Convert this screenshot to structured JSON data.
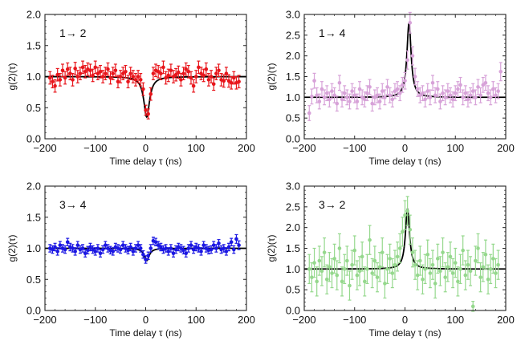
{
  "chart_data": [
    {
      "type": "scatter",
      "panel_label": "1→ 2",
      "xlabel": "Time delay τ (ns)",
      "ylabel": "g(2)(τ)",
      "xlim": [
        -200,
        200
      ],
      "ylim": [
        0.0,
        2.0
      ],
      "xticks": [
        -200,
        -100,
        0,
        100,
        200
      ],
      "yticks": [
        0.0,
        0.5,
        1.0,
        1.5,
        2.0
      ],
      "xtick_labels": [
        "−200",
        "−100",
        "0",
        "100",
        "200"
      ],
      "ytick_labels": [
        "0.0",
        "0.5",
        "1.0",
        "1.5",
        "2.0"
      ],
      "color": "#e8151b",
      "fit": {
        "shape": "dip",
        "baseline": 1.0,
        "center": 2,
        "width": 7,
        "amplitude": 0.65
      },
      "points": {
        "x": [
          -190,
          -185,
          -180,
          -175,
          -170,
          -165,
          -160,
          -155,
          -150,
          -145,
          -140,
          -135,
          -130,
          -125,
          -120,
          -115,
          -110,
          -105,
          -100,
          -95,
          -90,
          -85,
          -80,
          -75,
          -70,
          -65,
          -60,
          -55,
          -50,
          -45,
          -40,
          -35,
          -30,
          -25,
          -20,
          -15,
          -10,
          -5,
          0,
          5,
          10,
          15,
          20,
          25,
          30,
          35,
          40,
          45,
          50,
          55,
          60,
          65,
          70,
          75,
          80,
          85,
          90,
          95,
          100,
          105,
          110,
          115,
          120,
          125,
          130,
          135,
          140,
          145,
          150,
          155,
          160,
          165,
          170,
          175,
          180,
          185
        ],
        "y": [
          0.98,
          0.92,
          0.85,
          1.03,
          0.95,
          1.1,
          0.98,
          1.12,
          1.05,
          0.95,
          1.13,
          1.0,
          1.05,
          1.15,
          1.08,
          1.12,
          1.1,
          1.02,
          1.15,
          1.05,
          1.08,
          1.0,
          1.05,
          1.12,
          0.98,
          1.05,
          1.1,
          0.92,
          1.0,
          1.05,
          1.08,
          0.92,
          1.05,
          1.0,
          0.95,
          1.0,
          0.95,
          0.8,
          0.46,
          0.4,
          0.72,
          1.05,
          1.1,
          1.08,
          1.05,
          1.15,
          0.98,
          1.02,
          1.1,
          1.0,
          1.03,
          1.07,
          0.95,
          1.05,
          1.12,
          1.08,
          0.98,
          0.85,
          1.0,
          1.15,
          1.05,
          1.02,
          1.12,
          0.95,
          1.0,
          0.88,
          1.05,
          1.1,
          0.95,
          0.93,
          1.05,
          0.93,
          0.9,
          0.98,
          0.9,
          0.92
        ],
        "err": [
          0.1,
          0.1,
          0.1,
          0.1,
          0.1,
          0.1,
          0.1,
          0.1,
          0.1,
          0.1,
          0.1,
          0.1,
          0.1,
          0.1,
          0.1,
          0.1,
          0.1,
          0.1,
          0.1,
          0.1,
          0.1,
          0.1,
          0.1,
          0.1,
          0.1,
          0.1,
          0.1,
          0.1,
          0.1,
          0.1,
          0.1,
          0.1,
          0.1,
          0.1,
          0.1,
          0.1,
          0.1,
          0.1,
          0.08,
          0.08,
          0.1,
          0.1,
          0.1,
          0.1,
          0.1,
          0.1,
          0.1,
          0.1,
          0.1,
          0.1,
          0.1,
          0.1,
          0.1,
          0.1,
          0.1,
          0.1,
          0.1,
          0.1,
          0.1,
          0.1,
          0.1,
          0.1,
          0.1,
          0.1,
          0.1,
          0.1,
          0.1,
          0.1,
          0.1,
          0.1,
          0.1,
          0.1,
          0.1,
          0.1,
          0.1,
          0.1
        ]
      }
    },
    {
      "type": "scatter",
      "panel_label": "1→ 4",
      "xlabel": "Time delay τ (ns)",
      "ylabel": "g(2)(τ)",
      "xlim": [
        -200,
        200
      ],
      "ylim": [
        0.0,
        3.0
      ],
      "xticks": [
        -200,
        -100,
        0,
        100,
        200
      ],
      "yticks": [
        0.0,
        0.5,
        1.0,
        1.5,
        2.0,
        2.5,
        3.0
      ],
      "xtick_labels": [
        "−200",
        "−100",
        "0",
        "100",
        "200"
      ],
      "ytick_labels": [
        "0.0",
        "0.5",
        "1.0",
        "1.5",
        "2.0",
        "2.5",
        "3.0"
      ],
      "color": "#d7a2d8",
      "fit": {
        "shape": "peak",
        "baseline": 1.0,
        "center": 8,
        "width": 5,
        "amplitude": 1.8
      },
      "points": {
        "x": [
          -190,
          -185,
          -180,
          -175,
          -170,
          -165,
          -160,
          -155,
          -150,
          -145,
          -140,
          -135,
          -130,
          -125,
          -120,
          -115,
          -110,
          -105,
          -100,
          -95,
          -90,
          -85,
          -80,
          -75,
          -70,
          -65,
          -60,
          -55,
          -50,
          -45,
          -40,
          -35,
          -30,
          -25,
          -20,
          -15,
          -10,
          -5,
          0,
          5,
          10,
          15,
          20,
          25,
          30,
          35,
          40,
          45,
          50,
          55,
          60,
          65,
          70,
          75,
          80,
          85,
          90,
          95,
          100,
          105,
          110,
          115,
          120,
          125,
          130,
          135,
          140,
          145,
          150,
          155,
          160,
          165,
          170,
          175,
          180,
          185,
          190
        ],
        "y": [
          0.62,
          1.02,
          1.4,
          1.05,
          0.9,
          1.2,
          1.0,
          1.1,
          0.95,
          1.15,
          1.05,
          0.85,
          1.35,
          0.95,
          1.1,
          1.0,
          0.9,
          1.15,
          1.05,
          0.9,
          1.2,
          1.0,
          0.95,
          1.1,
          1.25,
          0.85,
          1.0,
          1.05,
          0.9,
          1.15,
          1.0,
          1.25,
          1.05,
          0.95,
          1.15,
          1.2,
          1.1,
          1.3,
          1.4,
          1.9,
          2.8,
          2.0,
          1.5,
          1.2,
          1.05,
          1.1,
          0.95,
          1.15,
          1.0,
          1.35,
          1.05,
          1.2,
          0.9,
          1.1,
          1.0,
          1.15,
          1.05,
          0.95,
          1.1,
          1.2,
          1.3,
          1.0,
          1.1,
          0.95,
          1.05,
          1.15,
          1.0,
          1.25,
          1.05,
          1.3,
          1.35,
          1.1,
          1.0,
          1.2,
          1.05,
          1.15,
          1.62
        ],
        "err": [
          0.18,
          0.18,
          0.18,
          0.18,
          0.18,
          0.18,
          0.18,
          0.18,
          0.18,
          0.18,
          0.18,
          0.18,
          0.18,
          0.18,
          0.18,
          0.18,
          0.18,
          0.18,
          0.18,
          0.18,
          0.18,
          0.18,
          0.18,
          0.18,
          0.18,
          0.18,
          0.18,
          0.18,
          0.18,
          0.18,
          0.18,
          0.18,
          0.18,
          0.18,
          0.18,
          0.18,
          0.18,
          0.18,
          0.2,
          0.22,
          0.25,
          0.22,
          0.2,
          0.18,
          0.18,
          0.18,
          0.18,
          0.18,
          0.18,
          0.18,
          0.18,
          0.18,
          0.18,
          0.18,
          0.18,
          0.18,
          0.18,
          0.18,
          0.18,
          0.18,
          0.18,
          0.18,
          0.18,
          0.18,
          0.18,
          0.18,
          0.18,
          0.18,
          0.18,
          0.18,
          0.18,
          0.18,
          0.18,
          0.18,
          0.18,
          0.18,
          0.22
        ]
      }
    },
    {
      "type": "scatter",
      "panel_label": "3→ 4",
      "xlabel": "Time delay τ (ns)",
      "ylabel": "g(2)(τ)",
      "xlim": [
        -200,
        200
      ],
      "ylim": [
        0.0,
        2.0
      ],
      "xticks": [
        -200,
        -100,
        0,
        100,
        200
      ],
      "yticks": [
        0.0,
        0.5,
        1.0,
        1.5,
        2.0
      ],
      "xtick_labels": [
        "−200",
        "−100",
        "0",
        "100",
        "200"
      ],
      "ytick_labels": [
        "0.0",
        "0.5",
        "1.0",
        "1.5",
        "2.0"
      ],
      "color": "#1a16e3",
      "fit": {
        "shape": "dip",
        "baseline": 1.0,
        "center": 2,
        "width": 6,
        "amplitude": 0.2
      },
      "points": {
        "x": [
          -190,
          -185,
          -180,
          -175,
          -170,
          -165,
          -160,
          -155,
          -150,
          -145,
          -140,
          -135,
          -130,
          -125,
          -120,
          -115,
          -110,
          -105,
          -100,
          -95,
          -90,
          -85,
          -80,
          -75,
          -70,
          -65,
          -60,
          -55,
          -50,
          -45,
          -40,
          -35,
          -30,
          -25,
          -20,
          -15,
          -10,
          -5,
          0,
          5,
          10,
          15,
          20,
          25,
          30,
          35,
          40,
          45,
          50,
          55,
          60,
          65,
          70,
          75,
          80,
          85,
          90,
          95,
          100,
          105,
          110,
          115,
          120,
          125,
          130,
          135,
          140,
          145,
          150,
          155,
          160,
          165,
          170,
          175,
          180,
          185
        ],
        "y": [
          1.0,
          0.98,
          1.02,
          0.95,
          1.05,
          1.0,
          0.98,
          1.1,
          1.02,
          1.0,
          0.95,
          1.05,
          0.98,
          1.0,
          0.92,
          0.97,
          1.02,
          0.98,
          0.95,
          1.0,
          0.92,
          0.98,
          1.05,
          1.0,
          0.97,
          0.95,
          1.02,
          1.0,
          0.98,
          1.05,
          1.0,
          0.97,
          1.02,
          0.95,
          1.0,
          1.05,
          1.0,
          0.9,
          0.82,
          0.88,
          1.0,
          1.12,
          1.1,
          1.05,
          1.02,
          0.98,
          1.0,
          0.95,
          1.0,
          0.92,
          0.98,
          1.02,
          1.0,
          0.97,
          0.92,
          1.0,
          1.05,
          0.98,
          1.02,
          1.0,
          0.95,
          1.05,
          1.0,
          0.97,
          0.98,
          1.05,
          1.0,
          1.08,
          0.98,
          1.0,
          0.95,
          1.02,
          1.1,
          0.98,
          1.15,
          1.05
        ],
        "err": [
          0.06,
          0.06,
          0.06,
          0.06,
          0.06,
          0.06,
          0.06,
          0.06,
          0.06,
          0.06,
          0.06,
          0.06,
          0.06,
          0.06,
          0.06,
          0.06,
          0.06,
          0.06,
          0.06,
          0.06,
          0.06,
          0.06,
          0.06,
          0.06,
          0.06,
          0.06,
          0.06,
          0.06,
          0.06,
          0.06,
          0.06,
          0.06,
          0.06,
          0.06,
          0.06,
          0.06,
          0.06,
          0.06,
          0.06,
          0.06,
          0.06,
          0.06,
          0.06,
          0.06,
          0.06,
          0.06,
          0.06,
          0.06,
          0.06,
          0.06,
          0.06,
          0.06,
          0.06,
          0.06,
          0.06,
          0.06,
          0.06,
          0.06,
          0.06,
          0.06,
          0.06,
          0.06,
          0.06,
          0.06,
          0.06,
          0.06,
          0.06,
          0.06,
          0.06,
          0.06,
          0.06,
          0.06,
          0.06,
          0.06,
          0.07,
          0.07
        ]
      }
    },
    {
      "type": "scatter",
      "panel_label": "3→ 2",
      "xlabel": "Time delay τ (ns)",
      "ylabel": "g(2)(τ)",
      "xlim": [
        -200,
        200
      ],
      "ylim": [
        0.0,
        3.0
      ],
      "xticks": [
        -200,
        -100,
        0,
        100,
        200
      ],
      "yticks": [
        0.0,
        0.5,
        1.0,
        1.5,
        2.0,
        2.5,
        3.0
      ],
      "xtick_labels": [
        "−200",
        "−100",
        "0",
        "100",
        "200"
      ],
      "ytick_labels": [
        "0.0",
        "0.5",
        "1.0",
        "1.5",
        "2.0",
        "2.5",
        "3.0"
      ],
      "color": "#95d88d",
      "fit": {
        "shape": "peak",
        "baseline": 1.0,
        "center": 5,
        "width": 5,
        "amplitude": 1.45
      },
      "points": {
        "x": [
          -190,
          -185,
          -180,
          -175,
          -170,
          -165,
          -160,
          -155,
          -150,
          -145,
          -140,
          -135,
          -130,
          -125,
          -120,
          -115,
          -110,
          -105,
          -100,
          -95,
          -90,
          -85,
          -80,
          -75,
          -70,
          -65,
          -60,
          -55,
          -50,
          -45,
          -40,
          -35,
          -30,
          -25,
          -20,
          -15,
          -10,
          -5,
          0,
          5,
          10,
          15,
          20,
          25,
          30,
          35,
          40,
          45,
          50,
          55,
          60,
          65,
          70,
          75,
          80,
          85,
          90,
          95,
          100,
          105,
          110,
          115,
          120,
          125,
          130,
          135,
          140,
          145,
          150,
          155,
          160,
          165,
          170,
          175,
          180,
          185
        ],
        "y": [
          1.0,
          0.8,
          1.15,
          0.7,
          1.2,
          0.95,
          1.4,
          0.75,
          1.05,
          0.9,
          1.25,
          0.85,
          1.5,
          0.7,
          1.0,
          1.2,
          0.6,
          1.1,
          1.45,
          0.85,
          0.95,
          1.3,
          0.7,
          1.0,
          1.7,
          0.9,
          1.2,
          0.8,
          1.05,
          1.4,
          0.65,
          1.0,
          1.25,
          0.9,
          1.1,
          1.3,
          1.5,
          1.9,
          2.3,
          2.4,
          1.95,
          1.4,
          1.1,
          0.85,
          1.2,
          0.75,
          1.0,
          1.35,
          0.9,
          1.1,
          0.65,
          1.25,
          0.95,
          1.4,
          0.8,
          1.05,
          1.3,
          0.9,
          1.15,
          0.7,
          1.0,
          1.45,
          0.85,
          1.1,
          0.95,
          0.1,
          1.2,
          1.5,
          0.8,
          1.05,
          1.35,
          0.75,
          1.0,
          1.25,
          0.9,
          1.1
        ],
        "err": [
          0.35,
          0.35,
          0.35,
          0.35,
          0.35,
          0.35,
          0.35,
          0.35,
          0.35,
          0.35,
          0.35,
          0.35,
          0.35,
          0.35,
          0.35,
          0.35,
          0.35,
          0.35,
          0.35,
          0.35,
          0.35,
          0.35,
          0.35,
          0.35,
          0.35,
          0.35,
          0.35,
          0.35,
          0.35,
          0.35,
          0.35,
          0.35,
          0.35,
          0.35,
          0.35,
          0.35,
          0.35,
          0.35,
          0.35,
          0.35,
          0.35,
          0.35,
          0.35,
          0.35,
          0.35,
          0.35,
          0.35,
          0.35,
          0.35,
          0.35,
          0.35,
          0.35,
          0.35,
          0.35,
          0.35,
          0.35,
          0.35,
          0.35,
          0.35,
          0.35,
          0.35,
          0.35,
          0.35,
          0.35,
          0.35,
          0.12,
          0.35,
          0.35,
          0.35,
          0.35,
          0.35,
          0.35,
          0.35,
          0.35,
          0.35,
          0.35
        ]
      }
    }
  ]
}
